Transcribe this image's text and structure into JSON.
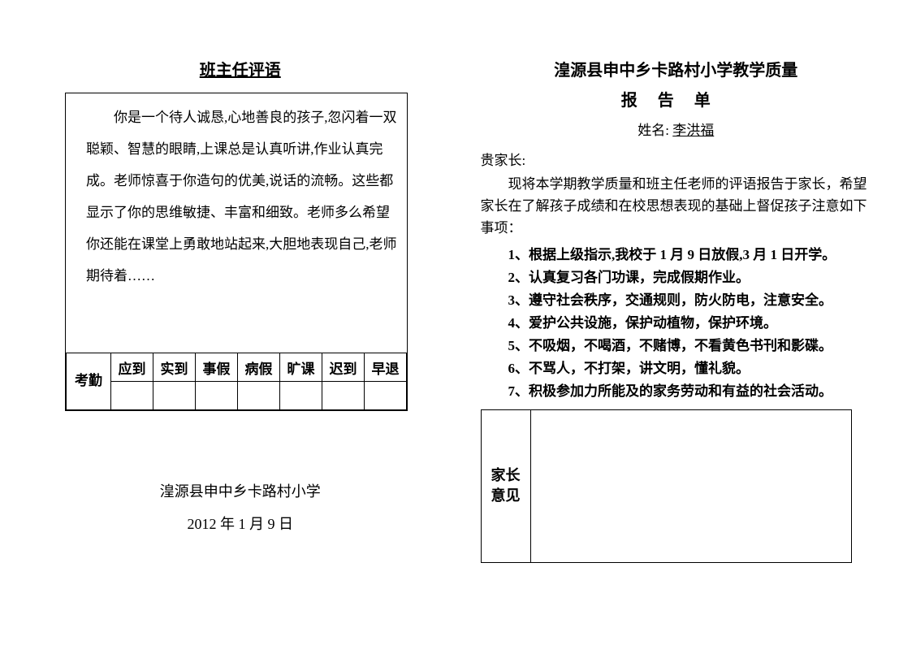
{
  "left": {
    "title": "班主任评语",
    "comment": "你是一个待人诚恳,心地善良的孩子,忽闪着一双聪颖、智慧的眼睛,上课总是认真听讲,作业认真完成。老师惊喜于你造句的优美,说话的流畅。这些都显示了你的思维敏捷、丰富和细致。老师多么希望你还能在课堂上勇敢地站起来,大胆地表现自己,老师期待着……",
    "attendance": {
      "label": "考勤",
      "headers": [
        "应到",
        "实到",
        "事假",
        "病假",
        "旷课",
        "迟到",
        "早退"
      ]
    },
    "school": "湟源县申中乡卡路村小学",
    "date": "2012 年 1 月 9 日"
  },
  "right": {
    "school_header": "湟源县申中乡卡路村小学教学质量",
    "report_title": "报告单",
    "name_label": "姓名:",
    "name_value": "李洪福",
    "greeting": "贵家长:",
    "intro": "现将本学期教学质量和班主任老师的评语报告于家长，希望家长在了解孩子成绩和在校思想表现的基础上督促孩子注意如下事项：",
    "rules": [
      "1、根据上级指示,我校于 1 月 9 日放假,3 月 1 日开学。",
      "2、认真复习各门功课，完成假期作业。",
      "3、遵守社会秩序，交通规则，防火防电，注意安全。",
      "4、爱护公共设施，保护动植物，保护环境。",
      "5、不吸烟，不喝酒，不赌博，不看黄色书刊和影碟。",
      "6、不骂人，不打架，讲文明，懂礼貌。",
      "7、积极参加力所能及的家务劳动和有益的社会活动。"
    ],
    "opinion_label": "家长意见"
  },
  "colors": {
    "text": "#000000",
    "background": "#ffffff",
    "border": "#000000"
  }
}
